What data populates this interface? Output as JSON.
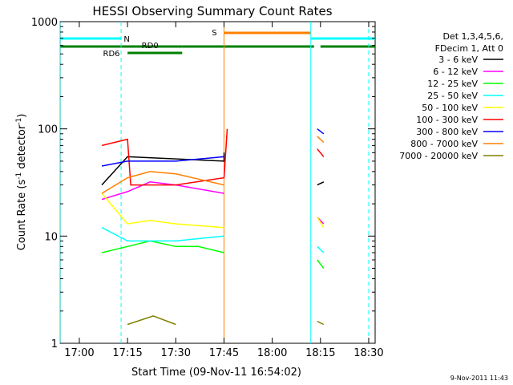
{
  "chart_data": {
    "type": "line",
    "title": "HESSI Observing Summary Count Rates",
    "xlabel": "Start Time (09-Nov-11 16:54:02)",
    "ylabel_parts": [
      "Count Rate (s",
      "-1",
      " detector",
      "-1",
      ")"
    ],
    "yscale": "log",
    "ylim": [
      1,
      1000
    ],
    "xlim": [
      "16:54:02",
      "18:32:00"
    ],
    "x_ticks": [
      "17:00",
      "17:15",
      "17:30",
      "17:45",
      "18:00",
      "18:15",
      "18:30"
    ],
    "y_ticks": [
      "1",
      "10",
      "100",
      "1000"
    ],
    "legend_header": [
      "Det 1,3,4,5,6,",
      "FDecim 1, Att 0"
    ],
    "legend_position": "right",
    "footer_date": "9-Nov-2011 11:43",
    "flag_labels": {
      "N": "N",
      "S": "S",
      "RD0": "RD0",
      "RD6": "RD6"
    },
    "flags": [
      {
        "name": "N",
        "color": "#00ffff",
        "segments": [
          [
            "16:54",
            "17:13"
          ],
          [
            "18:12",
            "18:32"
          ]
        ]
      },
      {
        "name": "S",
        "color": "#ff8000",
        "segments": [
          [
            "17:45",
            "18:12"
          ]
        ]
      },
      {
        "name": "RD0",
        "color": "#008000",
        "segments": [
          [
            "16:54",
            "17:32"
          ],
          [
            "17:32",
            "18:13"
          ],
          [
            "18:15",
            "18:32"
          ]
        ]
      },
      {
        "name": "RD6",
        "color": "#008000",
        "segments": [
          [
            "17:15",
            "17:32"
          ]
        ]
      }
    ],
    "series": [
      {
        "name": "3 - 6 keV",
        "color": "#000000",
        "segments": [
          [
            [
              "17:07",
              30
            ],
            [
              "17:15",
              55
            ],
            [
              "17:45",
              50
            ],
            [
              "17:45",
              60
            ]
          ],
          [
            [
              "18:14",
              30
            ],
            [
              "18:16",
              32
            ]
          ]
        ]
      },
      {
        "name": "6 - 12 keV",
        "color": "#ff00ff",
        "segments": [
          [
            [
              "17:07",
              22
            ],
            [
              "17:15",
              26
            ],
            [
              "17:22",
              32
            ],
            [
              "17:30",
              30
            ],
            [
              "17:45",
              25
            ]
          ],
          [
            [
              "18:14",
              15
            ],
            [
              "18:16",
              13
            ]
          ]
        ]
      },
      {
        "name": "12 - 25 keV",
        "color": "#00ff00",
        "segments": [
          [
            [
              "17:07",
              7
            ],
            [
              "17:15",
              8
            ],
            [
              "17:22",
              9
            ],
            [
              "17:30",
              8
            ],
            [
              "17:37",
              8
            ],
            [
              "17:45",
              7
            ]
          ],
          [
            [
              "18:14",
              6
            ],
            [
              "18:16",
              5
            ]
          ]
        ]
      },
      {
        "name": "25 - 50 keV",
        "color": "#00ffff",
        "segments": [
          [
            [
              "17:07",
              12
            ],
            [
              "17:15",
              9
            ],
            [
              "17:22",
              9
            ],
            [
              "17:30",
              9
            ],
            [
              "17:45",
              10
            ]
          ],
          [
            [
              "18:14",
              8
            ],
            [
              "18:16",
              7
            ]
          ]
        ]
      },
      {
        "name": "50 - 100 keV",
        "color": "#ffff00",
        "segments": [
          [
            [
              "17:07",
              25
            ],
            [
              "17:15",
              13
            ],
            [
              "17:22",
              14
            ],
            [
              "17:30",
              13
            ],
            [
              "17:45",
              12
            ]
          ],
          [
            [
              "18:14",
              15
            ],
            [
              "18:16",
              12
            ]
          ]
        ]
      },
      {
        "name": "100 - 300 keV",
        "color": "#ff0000",
        "segments": [
          [
            [
              "17:07",
              70
            ],
            [
              "17:15",
              80
            ],
            [
              "17:16",
              30
            ],
            [
              "17:30",
              30
            ],
            [
              "17:45",
              35
            ],
            [
              "17:46",
              100
            ]
          ],
          [
            [
              "18:14",
              65
            ],
            [
              "18:16",
              55
            ]
          ]
        ]
      },
      {
        "name": "300 - 800 keV",
        "color": "#0000ff",
        "segments": [
          [
            [
              "17:07",
              45
            ],
            [
              "17:15",
              50
            ],
            [
              "17:30",
              50
            ],
            [
              "17:45",
              55
            ]
          ],
          [
            [
              "18:14",
              100
            ],
            [
              "18:16",
              90
            ]
          ]
        ]
      },
      {
        "name": "800 - 7000 keV",
        "color": "#ff8000",
        "segments": [
          [
            [
              "17:07",
              25
            ],
            [
              "17:15",
              35
            ],
            [
              "17:22",
              40
            ],
            [
              "17:30",
              38
            ],
            [
              "17:45",
              30
            ]
          ],
          [
            [
              "18:14",
              85
            ],
            [
              "18:16",
              75
            ]
          ]
        ]
      },
      {
        "name": "7000 - 20000 keV",
        "color": "#808000",
        "segments": [
          [
            [
              "17:15",
              1.5
            ],
            [
              "17:23",
              1.8
            ],
            [
              "17:30",
              1.5
            ]
          ],
          [
            [
              "18:14",
              1.6
            ],
            [
              "18:16",
              1.5
            ]
          ]
        ]
      }
    ],
    "grid": false
  }
}
